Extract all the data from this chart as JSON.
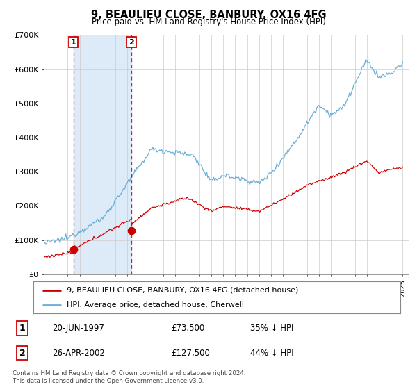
{
  "title": "9, BEAULIEU CLOSE, BANBURY, OX16 4FG",
  "subtitle": "Price paid vs. HM Land Registry's House Price Index (HPI)",
  "background_color": "#ffffff",
  "plot_bg_color": "#ffffff",
  "shade_color": "#ddeaf7",
  "sale1": {
    "date_label": "20-JUN-1997",
    "price": 73500,
    "price_label": "£73,500",
    "pct": "35% ↓ HPI",
    "date_x": 1997.47,
    "label": "1"
  },
  "sale2": {
    "date_label": "26-APR-2002",
    "price": 127500,
    "price_label": "£127,500",
    "pct": "44% ↓ HPI",
    "date_x": 2002.32,
    "label": "2"
  },
  "legend_property": "9, BEAULIEU CLOSE, BANBURY, OX16 4FG (detached house)",
  "legend_hpi": "HPI: Average price, detached house, Cherwell",
  "footnote": "Contains HM Land Registry data © Crown copyright and database right 2024.\nThis data is licensed under the Open Government Licence v3.0.",
  "hpi_color": "#6aaed6",
  "property_color": "#cc0000",
  "ylim": [
    0,
    700000
  ],
  "xlim": [
    1995.0,
    2025.5
  ],
  "yticks": [
    0,
    100000,
    200000,
    300000,
    400000,
    500000,
    600000,
    700000
  ],
  "ytick_labels": [
    "£0",
    "£100K",
    "£200K",
    "£300K",
    "£400K",
    "£500K",
    "£600K",
    "£700K"
  ],
  "xticks": [
    1995,
    1996,
    1997,
    1998,
    1999,
    2000,
    2001,
    2002,
    2003,
    2004,
    2005,
    2006,
    2007,
    2008,
    2009,
    2010,
    2011,
    2012,
    2013,
    2014,
    2015,
    2016,
    2017,
    2018,
    2019,
    2020,
    2021,
    2022,
    2023,
    2024,
    2025
  ]
}
